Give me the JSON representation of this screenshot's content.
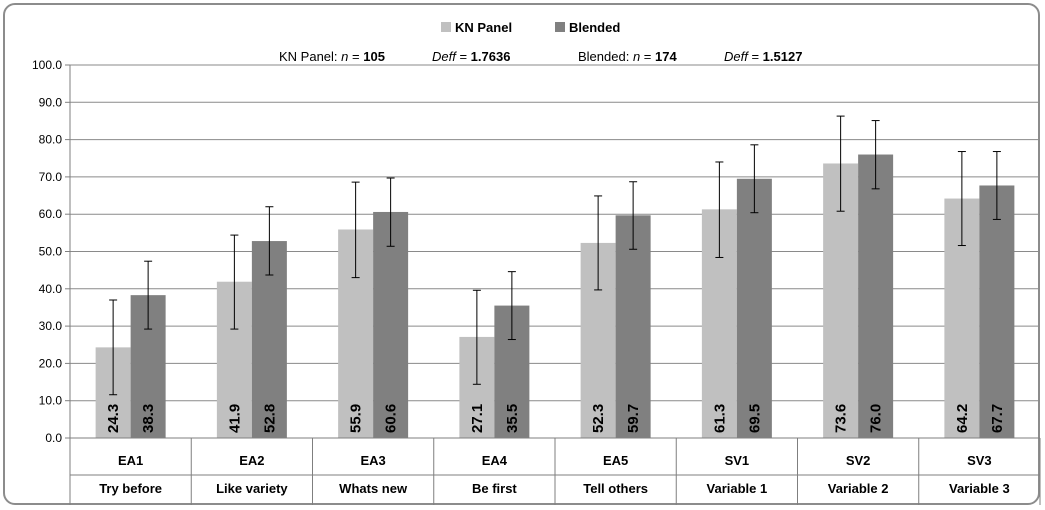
{
  "chart_data": {
    "type": "bar",
    "categories": [
      "EA1",
      "EA2",
      "EA3",
      "EA4",
      "EA5",
      "SV1",
      "SV2",
      "SV3"
    ],
    "category_names": [
      "Try before",
      "Like variety",
      "Whats new",
      "Be first",
      "Tell others",
      "Variable 1",
      "Variable 2",
      "Variable 3"
    ],
    "series": [
      {
        "name": "KN Panel",
        "color": "#c0c0c0",
        "values": [
          24.3,
          41.9,
          55.9,
          27.1,
          52.3,
          61.3,
          73.6,
          64.2
        ],
        "error_low": [
          11.6,
          29.2,
          43.0,
          14.4,
          39.7,
          48.4,
          60.8,
          51.6
        ],
        "error_high": [
          37.0,
          54.4,
          68.6,
          39.6,
          64.9,
          74.0,
          86.3,
          76.8
        ]
      },
      {
        "name": "Blended",
        "color": "#808080",
        "values": [
          38.3,
          52.8,
          60.6,
          35.5,
          59.7,
          69.5,
          76.0,
          67.7
        ],
        "error_low": [
          29.2,
          43.7,
          51.4,
          26.4,
          50.6,
          60.4,
          66.8,
          58.6
        ],
        "error_high": [
          47.4,
          62.0,
          69.7,
          44.6,
          68.7,
          78.6,
          85.1,
          76.8
        ]
      }
    ],
    "ylim": [
      0,
      100
    ],
    "yticks": [
      "0.0",
      "10.0",
      "20.0",
      "30.0",
      "40.0",
      "50.0",
      "60.0",
      "70.0",
      "80.0",
      "90.0",
      "100.0"
    ],
    "grid": true,
    "legend_position": "top-center",
    "stats": {
      "kn_label": "KN Panel:",
      "kn_n_label": "n",
      "kn_n": "105",
      "kn_deff_label": "Deff",
      "kn_deff": "1.7636",
      "bl_label": "Blended:",
      "bl_n_label": "n",
      "bl_n": "174",
      "bl_deff_label": "Deff",
      "bl_deff": "1.5127"
    }
  }
}
